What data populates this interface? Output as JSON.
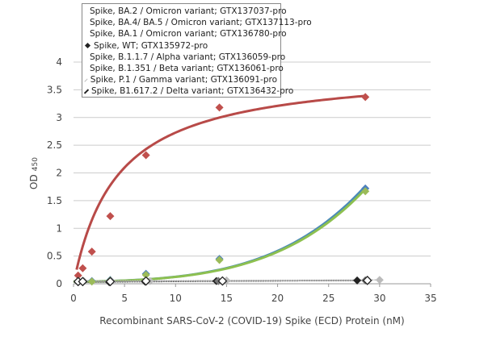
{
  "chart_data": {
    "type": "scatter",
    "xlabel": "Recombinant SARS-CoV-2 (COVID-19) Spike (ECD) Protein  (nM)",
    "ylabel": "OD",
    "ylabel_sub": "450",
    "xlim": [
      0,
      35
    ],
    "ylim": [
      0,
      4
    ],
    "xticks": [
      0,
      5,
      10,
      15,
      20,
      25,
      30,
      35
    ],
    "yticks": [
      0,
      0.5,
      1,
      1.5,
      2,
      2.5,
      3,
      3.5,
      4
    ],
    "ytick_labels": [
      "0",
      "0.5",
      "1",
      "1.5",
      "2",
      "2.5",
      "3",
      "3.5",
      "4"
    ],
    "grid": "horizontal",
    "legend_position": "top-left",
    "series": [
      {
        "name": "Spike, BA.2 / Omicron variant; GTX137037-pro",
        "color": "#4f81bd",
        "line": "#4a8ab8",
        "x": [
          0.45,
          0.9,
          1.8,
          3.6,
          7.1,
          14.3,
          28.6
        ],
        "y": [
          0.05,
          0.05,
          0.05,
          0.07,
          0.18,
          0.45,
          1.72
        ],
        "fit": true
      },
      {
        "name": "Spike, BA.4/ BA.5 / Omicron variant; GTX137113-pro",
        "color": "#c0504d",
        "line": "#b84a48",
        "x": [
          0.45,
          0.9,
          1.8,
          3.6,
          7.1,
          14.3,
          28.6
        ],
        "y": [
          0.15,
          0.28,
          0.58,
          1.22,
          2.32,
          3.18,
          3.37
        ],
        "fit": true
      },
      {
        "name": "Spike, BA.1 / Omicron variant; GTX136780-pro",
        "color": "#9bbb59",
        "line": "#8dc050",
        "x": [
          0.45,
          0.9,
          1.8,
          3.6,
          7.1,
          14.3,
          28.6
        ],
        "y": [
          0.04,
          0.04,
          0.04,
          0.06,
          0.16,
          0.43,
          1.67
        ],
        "fit": true
      },
      {
        "name": "Spike, WT; GTX135972-pro",
        "color": "#222222",
        "x": [
          0.45,
          0.9,
          3.5,
          7,
          14,
          27.8
        ],
        "y": [
          0.03,
          0.03,
          0.03,
          0.04,
          0.05,
          0.06
        ]
      },
      {
        "name": "Spike, B.1.1.7 / Alpha variant; GTX136059-pro",
        "color": "#555555",
        "x": [
          0.45,
          0.9,
          3.6,
          7.1,
          14.2,
          28.6
        ],
        "y": [
          0.04,
          0.04,
          0.04,
          0.05,
          0.05,
          0.06
        ]
      },
      {
        "name": "Spike, B.1.351 / Beta variant; GTX136061-pro",
        "color": "#777777",
        "x": [
          0.45,
          0.9,
          3.6,
          7.1,
          14.2,
          28.6
        ],
        "y": [
          0.04,
          0.04,
          0.04,
          0.05,
          0.05,
          0.06
        ]
      },
      {
        "name": "Spike, P.1 / Gamma variant; GTX136091-pro",
        "color": "#bbbbbb",
        "x": [
          0.5,
          1,
          3.7,
          7.5,
          15,
          30
        ],
        "y": [
          0.05,
          0.05,
          0.05,
          0.05,
          0.06,
          0.07
        ]
      },
      {
        "name": "Spike, B1.617.2 / Delta variant; GTX136432-pro",
        "color": "#ffffff",
        "stroke": "#222222",
        "x": [
          0.45,
          0.9,
          3.6,
          7.1,
          14.6,
          28.8
        ],
        "y": [
          0.04,
          0.04,
          0.04,
          0.05,
          0.05,
          0.06
        ]
      }
    ]
  }
}
